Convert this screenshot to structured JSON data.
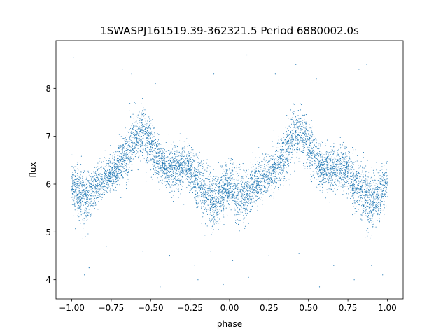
{
  "chart_data": {
    "type": "scatter",
    "title": "1SWASPJ161519.39-362321.5 Period 6880002.0s",
    "xlabel": "phase",
    "ylabel": "flux",
    "xlim": [
      -1.1,
      1.1
    ],
    "ylim": [
      3.6,
      9.0
    ],
    "xticks": [
      -1.0,
      -0.75,
      -0.5,
      -0.25,
      0.0,
      0.25,
      0.5,
      0.75,
      1.0
    ],
    "xtick_labels": [
      "−1.00",
      "−0.75",
      "−0.50",
      "−0.25",
      "0.00",
      "0.25",
      "0.50",
      "0.75",
      "1.00"
    ],
    "yticks": [
      4,
      5,
      6,
      7,
      8
    ],
    "ytick_labels": [
      "4",
      "5",
      "6",
      "7",
      "8"
    ],
    "grid": false,
    "marker_color": "#1f77b4",
    "phase_profile": {
      "phase": [
        0.0,
        0.05,
        0.1,
        0.15,
        0.2,
        0.25,
        0.3,
        0.35,
        0.4,
        0.45,
        0.5,
        0.55,
        0.6,
        0.65,
        0.7,
        0.75,
        0.8,
        0.85,
        0.9,
        0.95,
        1.0
      ],
      "flux": [
        6.0,
        5.8,
        5.7,
        5.95,
        6.1,
        6.2,
        6.4,
        6.6,
        7.0,
        7.1,
        6.8,
        6.5,
        6.3,
        6.3,
        6.35,
        6.3,
        6.0,
        5.8,
        5.6,
        5.8,
        6.0
      ],
      "spread": [
        0.3,
        0.35,
        0.4,
        0.3,
        0.25,
        0.25,
        0.3,
        0.35,
        0.35,
        0.35,
        0.35,
        0.3,
        0.3,
        0.3,
        0.3,
        0.3,
        0.35,
        0.4,
        0.4,
        0.35,
        0.3
      ]
    },
    "outliers": [
      {
        "x": -0.99,
        "y": 8.65
      },
      {
        "x": -0.92,
        "y": 4.1
      },
      {
        "x": -0.89,
        "y": 4.25
      },
      {
        "x": -0.78,
        "y": 4.7
      },
      {
        "x": -0.68,
        "y": 8.4
      },
      {
        "x": -0.62,
        "y": 8.3
      },
      {
        "x": -0.55,
        "y": 4.6
      },
      {
        "x": -0.47,
        "y": 8.1
      },
      {
        "x": -0.44,
        "y": 3.85
      },
      {
        "x": -0.38,
        "y": 4.5
      },
      {
        "x": -0.22,
        "y": 4.3
      },
      {
        "x": -0.2,
        "y": 4.0
      },
      {
        "x": -0.12,
        "y": 4.6
      },
      {
        "x": -0.1,
        "y": 8.3
      },
      {
        "x": -0.04,
        "y": 3.9
      },
      {
        "x": 0.02,
        "y": 4.4
      },
      {
        "x": 0.11,
        "y": 8.7
      },
      {
        "x": 0.12,
        "y": 4.05
      },
      {
        "x": 0.25,
        "y": 4.5
      },
      {
        "x": 0.29,
        "y": 8.3
      },
      {
        "x": 0.42,
        "y": 8.5
      },
      {
        "x": 0.44,
        "y": 4.55
      },
      {
        "x": 0.55,
        "y": 8.2
      },
      {
        "x": 0.57,
        "y": 3.85
      },
      {
        "x": 0.66,
        "y": 4.3
      },
      {
        "x": 0.79,
        "y": 4.0
      },
      {
        "x": 0.82,
        "y": 8.4
      },
      {
        "x": 0.87,
        "y": 8.5
      },
      {
        "x": 0.9,
        "y": 4.3
      },
      {
        "x": 0.97,
        "y": 4.1
      }
    ]
  }
}
